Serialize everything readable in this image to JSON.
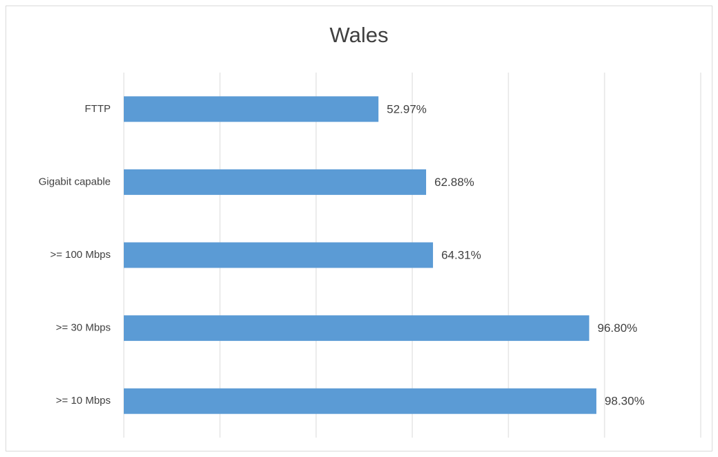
{
  "chart_data": {
    "type": "bar",
    "orientation": "horizontal",
    "title": "Wales",
    "categories": [
      "FTTP",
      "Gigabit capable",
      ">= 100 Mbps",
      ">= 30 Mbps",
      ">= 10 Mbps"
    ],
    "values": [
      52.97,
      62.88,
      64.31,
      96.8,
      98.3
    ],
    "value_labels": [
      "52.97%",
      "62.88%",
      "64.31%",
      "96.80%",
      "98.30%"
    ],
    "color": "#5b9bd5",
    "xlim": [
      0,
      120
    ],
    "xticks": [
      0,
      20,
      40,
      60,
      80,
      100,
      120
    ],
    "grid": true
  }
}
